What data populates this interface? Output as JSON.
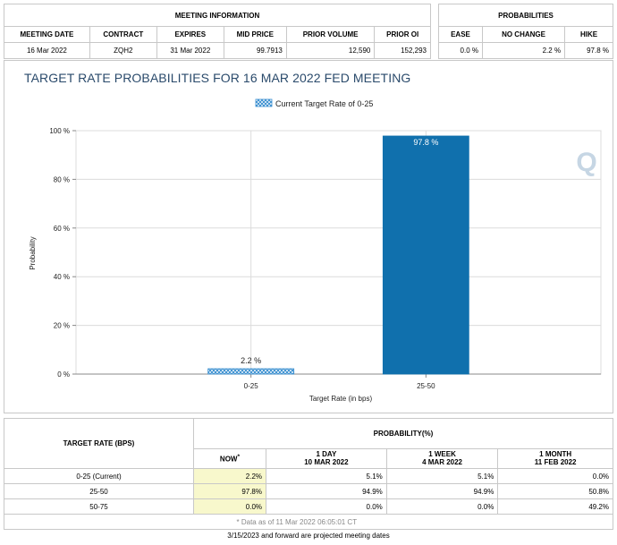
{
  "meeting_info": {
    "title": "MEETING INFORMATION",
    "columns": [
      "MEETING DATE",
      "CONTRACT",
      "EXPIRES",
      "MID PRICE",
      "PRIOR VOLUME",
      "PRIOR OI"
    ],
    "values": [
      "16 Mar 2022",
      "ZQH2",
      "31 Mar 2022",
      "99.7913",
      "12,590",
      "152,293"
    ]
  },
  "probabilities": {
    "title": "PROBABILITIES",
    "columns": [
      "EASE",
      "NO CHANGE",
      "HIKE"
    ],
    "values": [
      "0.0 %",
      "2.2 %",
      "97.8 %"
    ]
  },
  "chart_data": {
    "type": "bar",
    "title": "TARGET RATE PROBABILITIES FOR 16 MAR 2022 FED MEETING",
    "legend": "Current Target Rate of 0-25",
    "categories": [
      "0-25",
      "25-50"
    ],
    "values": [
      2.2,
      97.8
    ],
    "value_labels": [
      "2.2 %",
      "97.8 %"
    ],
    "series_styles": [
      "hatched",
      "solid"
    ],
    "xlabel": "Target Rate (in bps)",
    "ylabel": "Probability",
    "ylim": [
      0,
      100
    ],
    "yticks": [
      0,
      20,
      40,
      60,
      80,
      100
    ],
    "ytick_labels": [
      "0 %",
      "20 %",
      "40 %",
      "60 %",
      "80 %",
      "100 %"
    ],
    "colors": {
      "bar": "#1070ad",
      "hatch": "#3a8fd0",
      "axis": "#888888",
      "grid": "#dcdcdc"
    },
    "watermark": "Q"
  },
  "bottom_table": {
    "rate_header": "TARGET RATE (BPS)",
    "prob_header": "PROBABILITY(%)",
    "now_label": "NOW",
    "now_marker": "*",
    "col_headers": [
      {
        "line1": "1 DAY",
        "line2": "10 MAR 2022"
      },
      {
        "line1": "1 WEEK",
        "line2": "4 MAR 2022"
      },
      {
        "line1": "1 MONTH",
        "line2": "11 FEB 2022"
      }
    ],
    "rows": [
      {
        "rate": "0-25 (Current)",
        "now": "2.2%",
        "day": "5.1%",
        "week": "5.1%",
        "month": "0.0%"
      },
      {
        "rate": "25-50",
        "now": "97.8%",
        "day": "94.9%",
        "week": "94.9%",
        "month": "50.8%"
      },
      {
        "rate": "50-75",
        "now": "0.0%",
        "day": "0.0%",
        "week": "0.0%",
        "month": "49.2%"
      }
    ],
    "data_note": "* Data as of 11 Mar 2022 06:05:01 CT"
  },
  "footer": "3/15/2023 and forward are projected meeting dates"
}
